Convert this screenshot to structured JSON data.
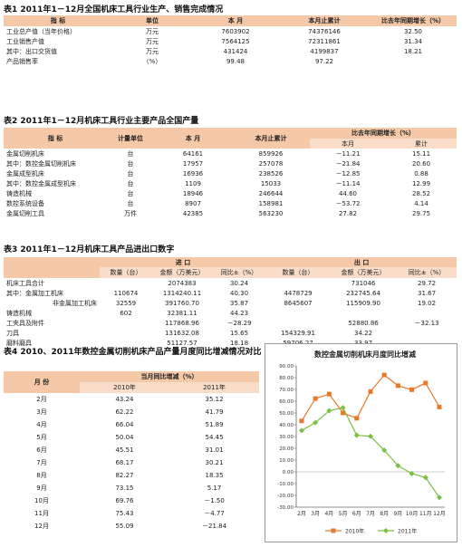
{
  "t1": {
    "caption": "表1  2011年1－12月全国机床工具行业生产、销售完成情况",
    "headers": [
      "指    标",
      "单位",
      "本  月",
      "本月止累计",
      "比去年同期增长（%）"
    ],
    "rows": [
      [
        "工业总产值（当年价格）",
        "万元",
        "7603902",
        "74376146",
        "32.50"
      ],
      [
        "工业销售产值",
        "万元",
        "7564125",
        "72311861",
        "31.34"
      ],
      [
        "其中：出口交货值",
        "万元",
        "431424",
        "4199837",
        "18.21"
      ],
      [
        "产品销售率",
        "（%）",
        "99.48",
        "97.22",
        ""
      ]
    ]
  },
  "t2": {
    "caption": "表2  2011年1－12月机床工具行业主要产品全国产量",
    "headers": [
      "指    标",
      "计量单位",
      "本  月",
      "本月止累计",
      "比去年同期增长（%）"
    ],
    "subheaders": [
      "本月",
      "累计"
    ],
    "rows": [
      [
        "金属切削机床",
        "台",
        "64161",
        "859926",
        "－11.21",
        "15.11"
      ],
      [
        "其中：数控金属切削机床",
        "台",
        "17957",
        "257078",
        "－21.84",
        "20.60"
      ],
      [
        "金属成型机床",
        "台",
        "16936",
        "238526",
        "－12.85",
        "0.88"
      ],
      [
        "其中：数控金属成型机床",
        "台",
        "1109",
        "15033",
        "－11.14",
        "12.99"
      ],
      [
        "铸造机械",
        "台",
        "18946",
        "246644",
        "44.60",
        "28.52"
      ],
      [
        "数控系统设备",
        "台",
        "8907",
        "158981",
        "－53.72",
        "4.14"
      ],
      [
        "金属切削工具",
        "万件",
        "42385",
        "563230",
        "27.82",
        "29.75"
      ]
    ]
  },
  "t3": {
    "caption": "表3  2011年1－12月机床工具产品进出口数字",
    "group_headers": [
      "进  口",
      "出  口"
    ],
    "headers": [
      "数量（台）",
      "金额（万美元）",
      "同比±（%）",
      "数量（台）",
      "金额（万美元）",
      "同比±（%）"
    ],
    "rows": [
      [
        "机床工具合计",
        "",
        "2074383",
        "30.24",
        "",
        "731046",
        "29.72"
      ],
      [
        "其中：金属加工机床",
        "110674",
        "1314240.11",
        "40.30",
        "4478729",
        "232745.64",
        "31.67"
      ],
      [
        "非金属加工机床",
        "32559",
        "391760.70",
        "35.87",
        "8645607",
        "115909.90",
        "19.02"
      ],
      [
        "铸造机械",
        "602",
        "32381.11",
        "44.23",
        "",
        "",
        ""
      ],
      [
        "工夹具及附件",
        "",
        "117868.96",
        "－28.29",
        "",
        "52880.86",
        "－32.13"
      ],
      [
        "刀具",
        "",
        "131632.08",
        "15.65",
        "154329.91",
        "34.22",
        ""
      ],
      [
        "磨料磨具",
        "",
        "51127.57",
        "18.18",
        "59706.27",
        "33.97",
        ""
      ]
    ]
  },
  "t4": {
    "caption": "表4  2010、2011年数控金属切削机床产品产量月度同比增减情况对比",
    "head_month": "月  份",
    "head_group": "当月同比增减（%）",
    "head_years": [
      "2010年",
      "2011年"
    ],
    "rows": [
      [
        "2月",
        "43.24",
        "35.12"
      ],
      [
        "3月",
        "62.22",
        "41.79"
      ],
      [
        "4月",
        "66.04",
        "51.89"
      ],
      [
        "5月",
        "50.04",
        "54.45"
      ],
      [
        "6月",
        "45.51",
        "31.01"
      ],
      [
        "7月",
        "68.17",
        "30.21"
      ],
      [
        "8月",
        "82.27",
        "18.35"
      ],
      [
        "9月",
        "73.15",
        "5.17"
      ],
      [
        "10月",
        "69.76",
        "－1.50"
      ],
      [
        "11月",
        "75.43",
        "－4.77"
      ],
      [
        "12月",
        "55.09",
        "－21.84"
      ]
    ]
  },
  "chart_data": {
    "type": "line",
    "title": "数控金属切削机床月度同比增减",
    "categories": [
      "2月",
      "3月",
      "4月",
      "5月",
      "6月",
      "7月",
      "8月",
      "9月",
      "10月",
      "11月",
      "12月"
    ],
    "series": [
      {
        "name": "2010年",
        "color": "#e8782a",
        "marker": "square",
        "values": [
          43.24,
          62.22,
          66.04,
          50.04,
          45.51,
          68.17,
          82.27,
          73.15,
          69.76,
          75.43,
          55.09
        ]
      },
      {
        "name": "2011年",
        "color": "#79c043",
        "marker": "diamond",
        "values": [
          35.12,
          41.79,
          51.89,
          54.45,
          31.01,
          30.21,
          18.35,
          5.17,
          -1.5,
          -4.77,
          -21.84
        ]
      }
    ],
    "ylim": [
      -30,
      90
    ],
    "yticks": [
      "90.00",
      "80.00",
      "70.00",
      "60.00",
      "50.00",
      "40.00",
      "30.00",
      "20.00",
      "10.00",
      "0.00",
      "-10.00",
      "-20.00",
      "-30.00"
    ],
    "grid": false,
    "legend": "bottom"
  }
}
